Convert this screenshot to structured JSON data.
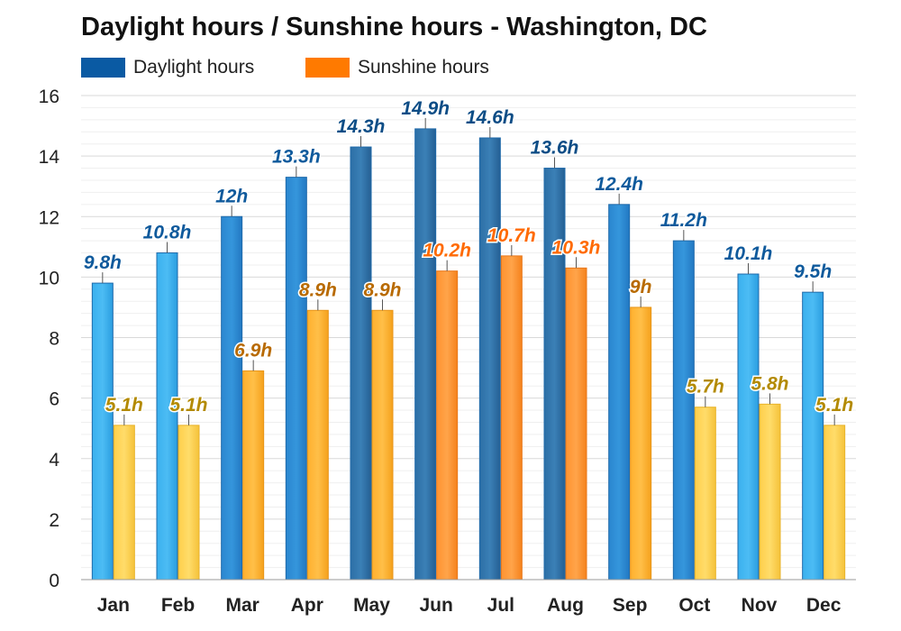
{
  "chart_data": {
    "type": "bar",
    "title": "Daylight hours / Sunshine hours - Washington, DC",
    "categories": [
      "Jan",
      "Feb",
      "Mar",
      "Apr",
      "May",
      "Jun",
      "Jul",
      "Aug",
      "Sep",
      "Oct",
      "Nov",
      "Dec"
    ],
    "series": [
      {
        "name": "Daylight hours",
        "values": [
          9.8,
          10.8,
          12,
          13.3,
          14.3,
          14.9,
          14.6,
          13.6,
          12.4,
          11.2,
          10.1,
          9.5
        ],
        "labels": [
          "9.8h",
          "10.8h",
          "12h",
          "13.3h",
          "14.3h",
          "14.9h",
          "14.6h",
          "13.6h",
          "12.4h",
          "11.2h",
          "10.1h",
          "9.5h"
        ],
        "color": "#2f87d6"
      },
      {
        "name": "Sunshine hours",
        "values": [
          5.1,
          5.1,
          6.9,
          8.9,
          8.9,
          10.2,
          10.7,
          10.3,
          9,
          5.7,
          5.8,
          5.1
        ],
        "labels": [
          "5.1h",
          "5.1h",
          "6.9h",
          "8.9h",
          "8.9h",
          "10.2h",
          "10.7h",
          "10.3h",
          "9h",
          "5.7h",
          "5.8h",
          "5.1h"
        ],
        "color": "#ff8a1c"
      }
    ],
    "ylim": [
      0,
      16
    ],
    "yticks": [
      "0",
      "2",
      "4",
      "6",
      "8",
      "10",
      "12",
      "14",
      "16"
    ],
    "xlabel": "",
    "ylabel": "",
    "grid": true,
    "legend_position": "top-left"
  },
  "legend": {
    "daylight_color": "#0a5aa3",
    "sunshine_color": "#ff7a00"
  }
}
